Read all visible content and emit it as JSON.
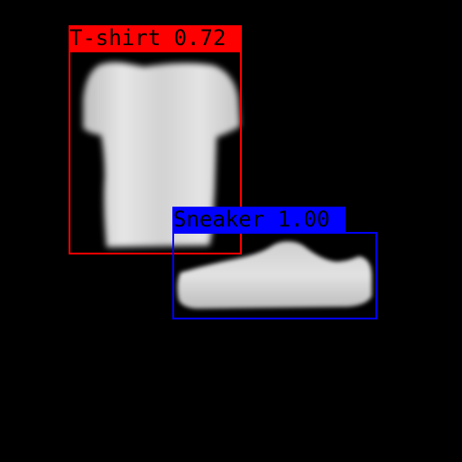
{
  "image": {
    "background": "#000000",
    "objects": [
      {
        "kind": "t-shirt",
        "icon": "tshirt-silhouette",
        "color": "#d9d9d9"
      },
      {
        "kind": "sneaker",
        "icon": "sneaker-silhouette",
        "color": "#d4d4d4"
      }
    ]
  },
  "detections": [
    {
      "label": "T-shirt",
      "score": "0.72",
      "text": "T-shirt 0.72",
      "color": "#ff0000"
    },
    {
      "label": "Sneaker",
      "score": "1.00",
      "text": "Sneaker 1.00",
      "color": "#0000ff"
    }
  ]
}
